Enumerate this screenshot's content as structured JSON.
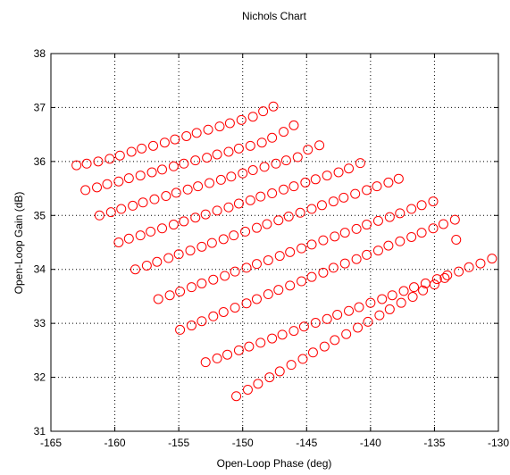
{
  "chart_data": {
    "type": "scatter",
    "title": "Nichols Chart",
    "xlabel": "Open-Loop Phase (deg)",
    "ylabel": "Open-Loop Gain (dB)",
    "xlim": [
      -165,
      -130
    ],
    "ylim": [
      31,
      38
    ],
    "xticks": [
      -165,
      -160,
      -155,
      -150,
      -145,
      -140,
      -135,
      -130
    ],
    "yticks": [
      31,
      32,
      33,
      34,
      35,
      36,
      37,
      38
    ],
    "grid": true,
    "marker": "circle",
    "marker_color": "#ff0000",
    "series": [
      {
        "x": [
          -163.0,
          -162.2,
          -161.3,
          -160.4,
          -159.6,
          -158.7,
          -157.9,
          -157.0,
          -156.1,
          -155.3,
          -154.4,
          -153.6,
          -152.7,
          -151.8,
          -151.0,
          -150.1,
          -149.2,
          -148.4,
          -147.6
        ],
        "y": [
          35.93,
          35.96,
          36.0,
          36.05,
          36.11,
          36.18,
          36.24,
          36.29,
          36.35,
          36.41,
          36.47,
          36.53,
          36.59,
          36.65,
          36.71,
          36.77,
          36.83,
          36.93,
          37.02
        ]
      },
      {
        "x": [
          -162.3,
          -161.4,
          -160.6,
          -159.7,
          -158.9,
          -158.0,
          -157.1,
          -156.3,
          -155.4,
          -154.6,
          -153.7,
          -152.8,
          -152.0,
          -151.1,
          -150.3,
          -149.4,
          -148.5,
          -147.7,
          -146.8,
          -146.0
        ],
        "y": [
          35.47,
          35.52,
          35.58,
          35.63,
          35.69,
          35.74,
          35.8,
          35.85,
          35.91,
          35.96,
          36.02,
          36.07,
          36.13,
          36.18,
          36.24,
          36.29,
          36.35,
          36.44,
          36.55,
          36.67
        ]
      },
      {
        "x": [
          -161.2,
          -160.3,
          -159.5,
          -158.6,
          -157.8,
          -156.9,
          -156.0,
          -155.2,
          -154.3,
          -153.5,
          -152.6,
          -151.7,
          -150.9,
          -150.0,
          -149.2,
          -148.3,
          -147.4,
          -146.6,
          -145.7,
          -144.9,
          -144.0
        ],
        "y": [
          35.0,
          35.06,
          35.12,
          35.18,
          35.24,
          35.3,
          35.36,
          35.42,
          35.48,
          35.54,
          35.6,
          35.66,
          35.72,
          35.78,
          35.84,
          35.9,
          35.96,
          36.02,
          36.08,
          36.22,
          36.3
        ]
      },
      {
        "x": [
          -159.7,
          -158.9,
          -158.0,
          -157.2,
          -156.3,
          -155.4,
          -154.6,
          -153.7,
          -152.9,
          -152.0,
          -151.1,
          -150.3,
          -149.4,
          -148.6,
          -147.7,
          -146.8,
          -146.0,
          -145.1,
          -144.3,
          -143.4,
          -142.5,
          -141.7,
          -140.8
        ],
        "y": [
          34.5,
          34.57,
          34.63,
          34.7,
          34.76,
          34.83,
          34.89,
          34.96,
          35.02,
          35.09,
          35.15,
          35.22,
          35.28,
          35.35,
          35.41,
          35.48,
          35.54,
          35.61,
          35.67,
          35.74,
          35.8,
          35.87,
          35.97
        ]
      },
      {
        "x": [
          -158.4,
          -157.5,
          -156.7,
          -155.8,
          -155.0,
          -154.1,
          -153.2,
          -152.4,
          -151.5,
          -150.7,
          -149.8,
          -148.9,
          -148.1,
          -147.2,
          -146.4,
          -145.5,
          -144.6,
          -143.8,
          -142.9,
          -142.1,
          -141.2,
          -140.3,
          -139.5,
          -138.6,
          -137.8
        ],
        "y": [
          34.0,
          34.07,
          34.14,
          34.21,
          34.28,
          34.35,
          34.42,
          34.49,
          34.56,
          34.63,
          34.7,
          34.77,
          34.84,
          34.91,
          34.98,
          35.05,
          35.12,
          35.19,
          35.26,
          35.33,
          35.4,
          35.47,
          35.54,
          35.61,
          35.68
        ]
      },
      {
        "x": [
          -156.6,
          -155.7,
          -154.9,
          -154.0,
          -153.2,
          -152.3,
          -151.4,
          -150.6,
          -149.7,
          -148.9,
          -148.0,
          -147.1,
          -146.3,
          -145.4,
          -144.6,
          -143.7,
          -142.8,
          -142.0,
          -141.1,
          -140.3,
          -139.4,
          -138.5,
          -137.7,
          -136.8,
          -136.0,
          -135.1
        ],
        "y": [
          33.45,
          33.52,
          33.59,
          33.67,
          33.74,
          33.81,
          33.88,
          33.96,
          34.03,
          34.1,
          34.17,
          34.25,
          34.32,
          34.39,
          34.46,
          34.54,
          34.61,
          34.68,
          34.75,
          34.83,
          34.9,
          34.97,
          35.04,
          35.12,
          35.19,
          35.26
        ]
      },
      {
        "x": [
          -154.9,
          -154.0,
          -153.2,
          -152.3,
          -151.5,
          -150.6,
          -149.7,
          -148.9,
          -148.0,
          -147.2,
          -146.3,
          -145.4,
          -144.6,
          -143.7,
          -142.9,
          -142.0,
          -141.1,
          -140.3,
          -139.4,
          -138.6,
          -137.7,
          -136.8,
          -136.0,
          -135.1,
          -134.3,
          -133.4
        ],
        "y": [
          32.88,
          32.96,
          33.04,
          33.13,
          33.21,
          33.29,
          33.37,
          33.45,
          33.54,
          33.62,
          33.7,
          33.78,
          33.86,
          33.94,
          34.03,
          34.11,
          34.19,
          34.27,
          34.35,
          34.44,
          34.52,
          34.6,
          34.68,
          34.76,
          34.84,
          34.92
        ]
      },
      {
        "x": [
          -152.9,
          -152.0,
          -151.2,
          -150.3,
          -149.5,
          -148.6,
          -147.7,
          -146.9,
          -146.0,
          -145.2,
          -144.3,
          -143.4,
          -142.6,
          -141.7,
          -140.9,
          -140.0,
          -139.1,
          -138.3,
          -137.4,
          -136.6,
          -135.7,
          -134.8,
          -134.0,
          -133.1,
          -132.3,
          -131.4,
          -130.5
        ],
        "y": [
          32.28,
          32.35,
          32.42,
          32.5,
          32.57,
          32.64,
          32.72,
          32.79,
          32.86,
          32.94,
          33.01,
          33.08,
          33.16,
          33.23,
          33.3,
          33.38,
          33.45,
          33.52,
          33.6,
          33.67,
          33.74,
          33.82,
          33.89,
          33.96,
          34.04,
          34.11,
          34.2
        ]
      },
      {
        "x": [
          -150.5,
          -149.6,
          -148.8,
          -147.9,
          -147.1,
          -146.2,
          -145.3,
          -144.5,
          -143.6,
          -142.8,
          -141.9,
          -141.0,
          -140.2,
          -139.3,
          -138.5,
          -137.6,
          -136.7,
          -135.9,
          -135.0,
          -134.2,
          -133.3
        ],
        "y": [
          31.65,
          31.77,
          31.88,
          32.0,
          32.11,
          32.23,
          32.34,
          32.46,
          32.57,
          32.69,
          32.8,
          32.92,
          33.03,
          33.15,
          33.26,
          33.38,
          33.49,
          33.61,
          33.72,
          33.84,
          34.55
        ]
      }
    ]
  }
}
